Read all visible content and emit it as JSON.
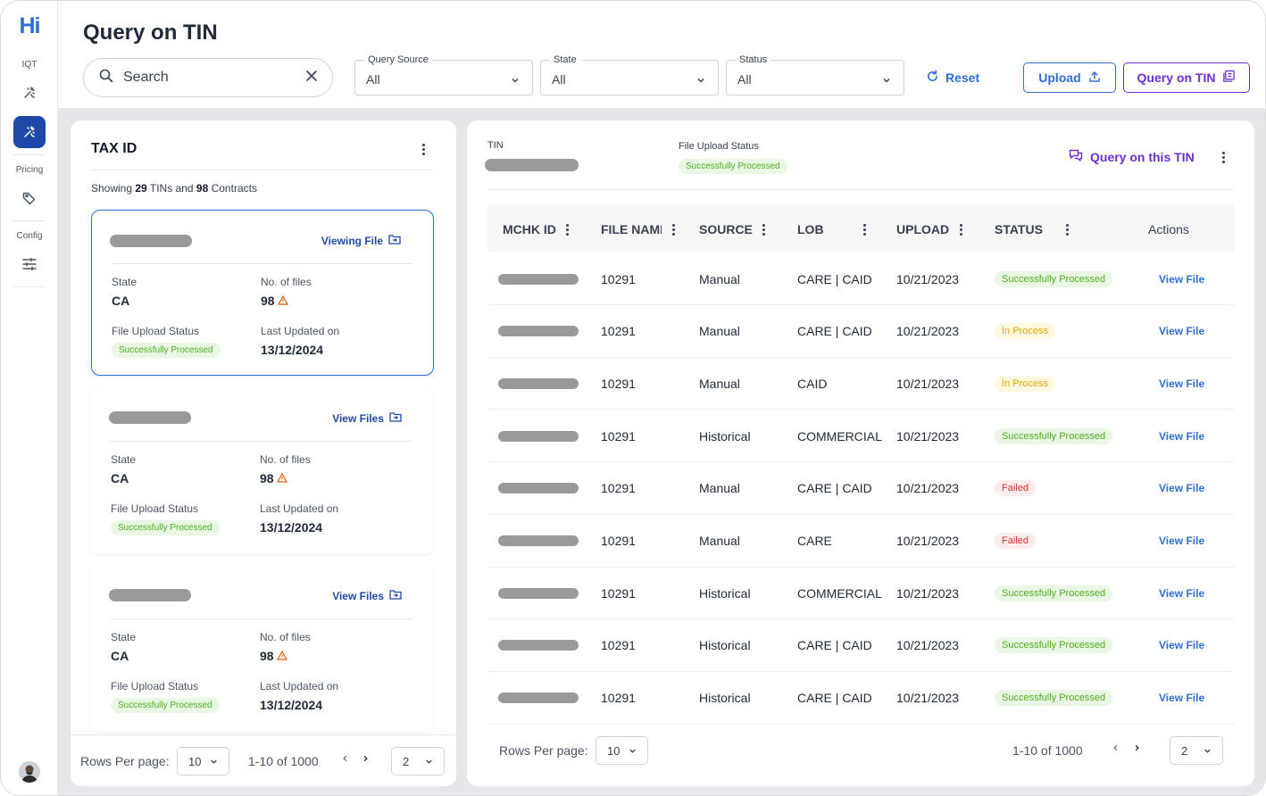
{
  "app": {
    "logo": "Hi"
  },
  "sidebar": {
    "groups": [
      {
        "label": "IQT",
        "icons": [
          "magic-wand-icon",
          "magic-wand-active-icon"
        ]
      },
      {
        "label": "Pricing",
        "icons": [
          "tag-icon"
        ]
      },
      {
        "label": "Config",
        "icons": [
          "sliders-icon"
        ]
      }
    ]
  },
  "header": {
    "title": "Query on TIN",
    "search_placeholder": "Search",
    "filters": [
      {
        "label": "Query Source",
        "value": "All"
      },
      {
        "label": "State",
        "value": "All"
      },
      {
        "label": "Status",
        "value": "All"
      }
    ],
    "reset_label": "Reset",
    "upload_label": "Upload",
    "query_label": "Query on TIN"
  },
  "left_panel": {
    "title": "TAX ID",
    "showing_prefix": "Showing",
    "tin_count": "29",
    "tins_and": "TINs and",
    "contract_count": "98",
    "contracts_word": "Contracts",
    "cards": [
      {
        "link": "Viewing File",
        "state_label": "State",
        "state": "CA",
        "files_label": "No. of files",
        "files": "98",
        "status_label": "File Upload Status",
        "status": "Successfully Processed",
        "updated_label": "Last Updated on",
        "updated": "13/12/2024"
      },
      {
        "link": "View Files",
        "state_label": "State",
        "state": "CA",
        "files_label": "No. of files",
        "files": "98",
        "status_label": "File Upload Status",
        "status": "Successfully Processed",
        "updated_label": "Last Updated on",
        "updated": "13/12/2024"
      },
      {
        "link": "View Files",
        "state_label": "State",
        "state": "CA",
        "files_label": "No. of files",
        "files": "98",
        "status_label": "File Upload Status",
        "status": "Successfully Processed",
        "updated_label": "Last Updated on",
        "updated": "13/12/2024"
      }
    ],
    "footer": {
      "rows_label": "Rows Per page:",
      "rows_value": "10",
      "range": "1-10 of 1000",
      "page": "2"
    }
  },
  "right_panel": {
    "tin_label": "TIN",
    "upload_status_label": "File Upload Status",
    "upload_status": "Successfully Processed",
    "query_link": "Query on this TIN",
    "columns": [
      "MCHK ID",
      "FILE NAME",
      "SOURCE",
      "LOB",
      "UPLOAD",
      "STATUS",
      "Actions"
    ],
    "rows": [
      {
        "file": "10291",
        "source": "Manual",
        "lob": "CARE | CAID",
        "upload": "10/21/2023",
        "status": "Successfully Processed",
        "status_type": "green",
        "action": "View File"
      },
      {
        "file": "10291",
        "source": "Manual",
        "lob": "CARE | CAID",
        "upload": "10/21/2023",
        "status": "In Process",
        "status_type": "yellow",
        "action": "View File"
      },
      {
        "file": "10291",
        "source": "Manual",
        "lob": "CAID",
        "upload": "10/21/2023",
        "status": "In Process",
        "status_type": "yellow",
        "action": "View File"
      },
      {
        "file": "10291",
        "source": "Historical",
        "lob": "COMMERCIAL",
        "upload": "10/21/2023",
        "status": "Successfully Processed",
        "status_type": "green",
        "action": "View File"
      },
      {
        "file": "10291",
        "source": "Manual",
        "lob": "CARE | CAID",
        "upload": "10/21/2023",
        "status": "Failed",
        "status_type": "red",
        "action": "View File"
      },
      {
        "file": "10291",
        "source": "Manual",
        "lob": "CARE",
        "upload": "10/21/2023",
        "status": "Failed",
        "status_type": "red",
        "action": "View File"
      },
      {
        "file": "10291",
        "source": "Historical",
        "lob": "COMMERCIAL",
        "upload": "10/21/2023",
        "status": "Successfully Processed",
        "status_type": "green",
        "action": "View File"
      },
      {
        "file": "10291",
        "source": "Historical",
        "lob": "CARE | CAID",
        "upload": "10/21/2023",
        "status": "Successfully Processed",
        "status_type": "green",
        "action": "View File"
      },
      {
        "file": "10291",
        "source": "Historical",
        "lob": "CARE | CAID",
        "upload": "10/21/2023",
        "status": "Successfully Processed",
        "status_type": "green",
        "action": "View File"
      }
    ],
    "footer": {
      "rows_label": "Rows Per page:",
      "rows_value": "10",
      "range": "1-10 of 1000",
      "page": "2"
    }
  }
}
